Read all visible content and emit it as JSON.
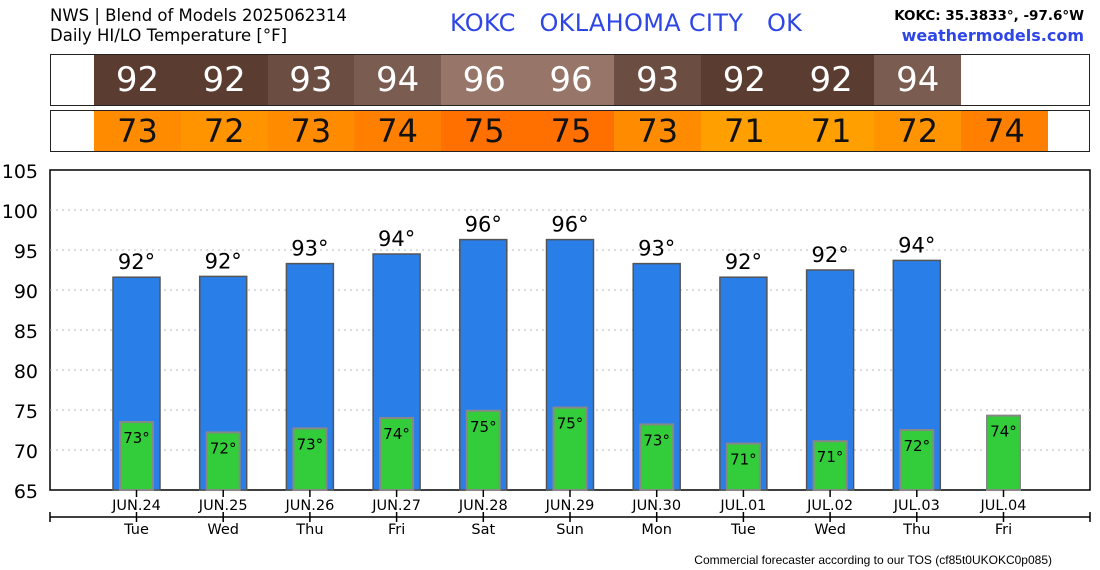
{
  "header": {
    "title_line1": "NWS | Blend of Models 2025062314",
    "title_line2": "Daily HI/LO Temperature [°F]",
    "station_line": "KOKC   OKLAHOMA CITY   OK",
    "coords": "KOKC: 35.3833°, -97.6°W",
    "site": "weathermodels.com"
  },
  "footer": {
    "text": "Commercial forecaster according to our TOS (cf85t0UKOKC0p085)"
  },
  "strips": {
    "hi": [
      {
        "text": "92",
        "color": "#5a3c30"
      },
      {
        "text": "92",
        "color": "#5a3c30"
      },
      {
        "text": "93",
        "color": "#6b4d41"
      },
      {
        "text": "94",
        "color": "#7a5c50"
      },
      {
        "text": "96",
        "color": "#977568"
      },
      {
        "text": "96",
        "color": "#977568"
      },
      {
        "text": "93",
        "color": "#6b4d41"
      },
      {
        "text": "92",
        "color": "#5a3c30"
      },
      {
        "text": "92",
        "color": "#5a3c30"
      },
      {
        "text": "94",
        "color": "#7a5c50"
      }
    ],
    "lo": [
      {
        "text": "73",
        "color": "#ff8c00"
      },
      {
        "text": "72",
        "color": "#ff9300"
      },
      {
        "text": "73",
        "color": "#ff8c00"
      },
      {
        "text": "74",
        "color": "#ff8000"
      },
      {
        "text": "75",
        "color": "#ff7000"
      },
      {
        "text": "75",
        "color": "#ff7000"
      },
      {
        "text": "73",
        "color": "#ff8c00"
      },
      {
        "text": "71",
        "color": "#ffa000"
      },
      {
        "text": "71",
        "color": "#ffa000"
      },
      {
        "text": "72",
        "color": "#ff9300"
      },
      {
        "text": "74",
        "color": "#ff8000"
      }
    ]
  },
  "chart_data": {
    "type": "bar",
    "ylim": [
      65,
      105
    ],
    "yticks": [
      "105",
      "100",
      "95",
      "90",
      "85",
      "80",
      "75",
      "70",
      "65"
    ],
    "grid": true,
    "categories": [
      "JUN.24",
      "JUN.25",
      "JUN.26",
      "JUN.27",
      "JUN.28",
      "JUN.29",
      "JUN.30",
      "JUL.01",
      "JUL.02",
      "JUL.03",
      "JUL.04"
    ],
    "days": [
      "Tue",
      "Wed",
      "Thu",
      "Fri",
      "Sat",
      "Sun",
      "Mon",
      "Tue",
      "Wed",
      "Thu",
      "Fri"
    ],
    "series": [
      {
        "values": [
          91.6,
          91.7,
          93.3,
          94.5,
          96.3,
          96.3,
          93.3,
          91.6,
          92.5,
          93.7,
          null
        ],
        "labels": [
          "92°",
          "92°",
          "93°",
          "94°",
          "96°",
          "96°",
          "93°",
          "92°",
          "92°",
          "94°",
          ""
        ],
        "color": "#2a7ee8"
      },
      {
        "values": [
          73.5,
          72.2,
          72.7,
          74.0,
          74.9,
          75.3,
          73.2,
          70.8,
          71.1,
          72.5,
          74.3
        ],
        "labels": [
          "73°",
          "72°",
          "73°",
          "74°",
          "75°",
          "75°",
          "73°",
          "71°",
          "71°",
          "72°",
          "74°"
        ],
        "color": "#33cc3a"
      }
    ]
  }
}
